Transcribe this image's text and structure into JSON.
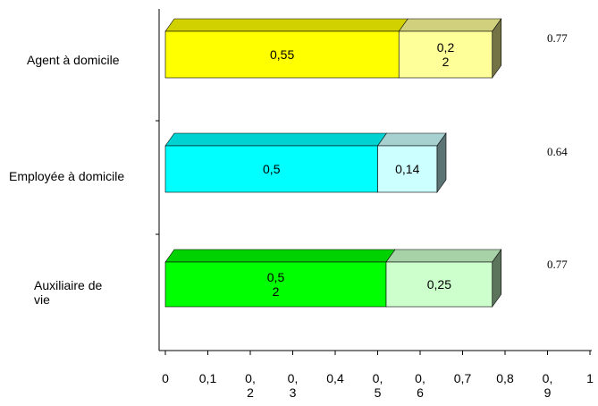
{
  "chart_data": {
    "type": "bar",
    "orientation": "horizontal",
    "stacked": true,
    "style": "3d",
    "categories": [
      "Agent à domicile",
      "Employée à domicile",
      "Auxiliaire de vie"
    ],
    "series": [
      {
        "values": [
          0.55,
          0.5,
          0.52
        ],
        "data_labels": [
          "0,55",
          "0,5",
          "0,5\n2"
        ],
        "colors": [
          "#ffff00",
          "#00ffff",
          "#00ff00"
        ]
      },
      {
        "values": [
          0.22,
          0.14,
          0.25
        ],
        "data_labels": [
          "0,2\n2",
          "0,14",
          "0,25"
        ],
        "colors": [
          "#ffff99",
          "#ccffff",
          "#ccffcc"
        ]
      }
    ],
    "totals": [
      "0.77",
      "0.64",
      "0.77"
    ],
    "x_ticks": [
      {
        "value": 0,
        "label": "0"
      },
      {
        "value": 0.1,
        "label": "0,1"
      },
      {
        "value": 0.2,
        "label": "0,\n2"
      },
      {
        "value": 0.3,
        "label": "0,\n3"
      },
      {
        "value": 0.4,
        "label": "0,4"
      },
      {
        "value": 0.5,
        "label": "0,\n5"
      },
      {
        "value": 0.6,
        "label": "0,\n6"
      },
      {
        "value": 0.7,
        "label": "0,7"
      },
      {
        "value": 0.8,
        "label": "0,8"
      },
      {
        "value": 0.9,
        "label": "0,\n9"
      },
      {
        "value": 1,
        "label": "1"
      }
    ],
    "xlim": [
      0,
      1
    ],
    "title": "",
    "xlabel": "",
    "ylabel": "",
    "grid": false,
    "legend": false
  }
}
